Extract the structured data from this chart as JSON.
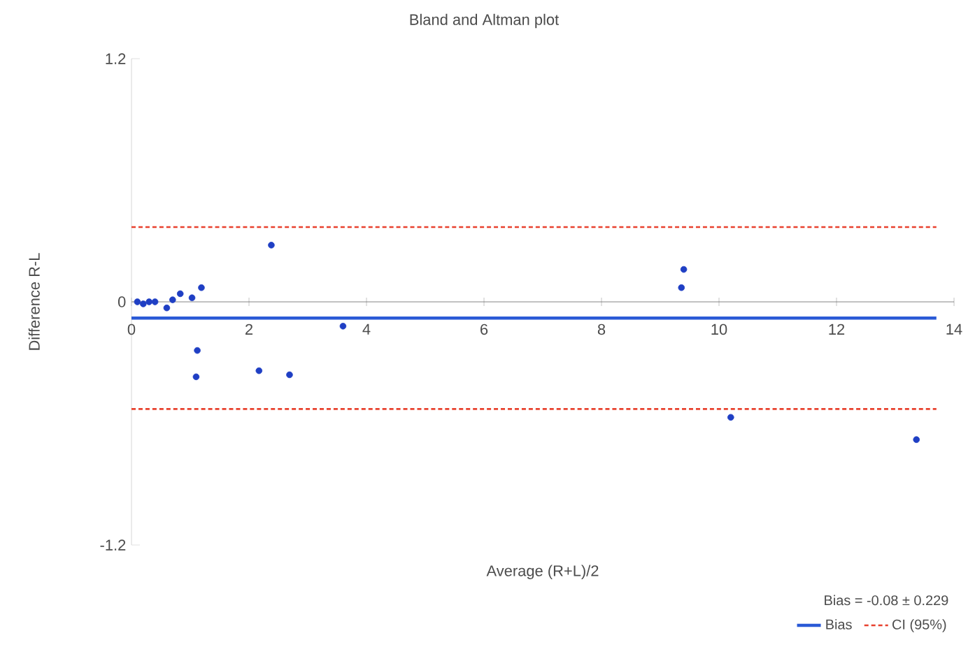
{
  "chart_data": {
    "type": "scatter",
    "title": "Bland and Altman plot",
    "xlabel": "Average (R+L)/2",
    "ylabel": "Difference R-L",
    "annotations": [
      "Bias = -0.08 ± 0.229"
    ],
    "xlim": [
      0,
      14
    ],
    "ylim": [
      -1.2,
      1.2
    ],
    "xticks": [
      0,
      2,
      4,
      6,
      8,
      10,
      12,
      14
    ],
    "yticks": [
      -1.2,
      0,
      1.2
    ],
    "marker": "circle",
    "legend": "bottom right",
    "series": [
      {
        "color": "#1f3fc4",
        "x": [
          0.1,
          0.2,
          0.3,
          0.4,
          0.6,
          0.7,
          0.83,
          1.03,
          1.19,
          2.38,
          9.36,
          9.4,
          1.12,
          1.1,
          2.17,
          2.69,
          3.6,
          10.2,
          13.36
        ],
        "values": [
          0,
          -0.01,
          0,
          0,
          -0.03,
          0.01,
          0.04,
          0.02,
          0.07,
          0.28,
          0.07,
          0.16,
          -0.24,
          -0.37,
          -0.34,
          -0.36,
          -0.12,
          -0.57,
          -0.68
        ]
      },
      {
        "type": "line",
        "name": "Bias",
        "color": "#2a5ad6",
        "line_style": "solid",
        "marker": "none",
        "x": [
          0,
          13.7
        ],
        "values": [
          -0.08,
          -0.08
        ]
      },
      {
        "type": "line",
        "name": "CI (95%)",
        "color": "#e8412e",
        "line_style": "dashed",
        "marker": "none",
        "x": [
          0,
          13.7
        ],
        "values": [
          0.369,
          0.369
        ]
      },
      {
        "type": "line",
        "color": "#e8412e",
        "line_style": "dashed",
        "marker": "none",
        "x": [
          0,
          13.7
        ],
        "values": [
          -0.529,
          -0.529
        ]
      }
    ]
  }
}
